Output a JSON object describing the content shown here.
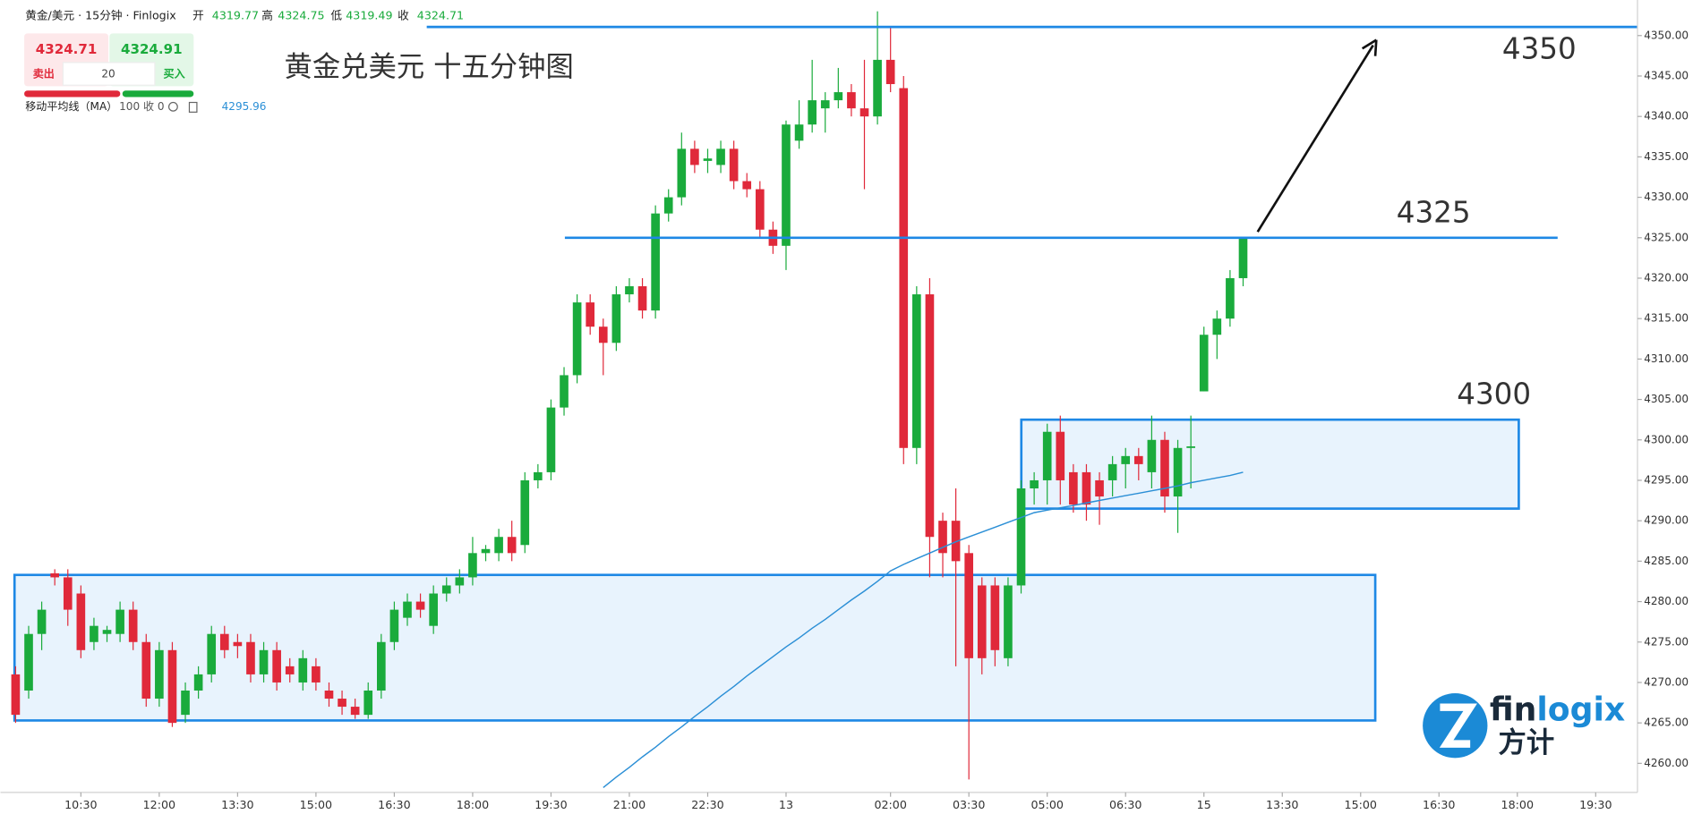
{
  "header": {
    "symbol": "黄金/美元 · 15分钟 · Finlogix",
    "open_label": "开",
    "open": "4319.77",
    "high_label": "高",
    "high": "4324.75",
    "low_label": "低",
    "low": "4319.49",
    "close_label": "收",
    "close": "4324.71",
    "sell_price": "4324.71",
    "buy_price": "4324.91",
    "sell": "卖出",
    "buy": "买入",
    "quantity": "20",
    "ma_label": "移动平均线（MA）",
    "ma_params": "100 收 0",
    "ma_value": "4295.96"
  },
  "logo": {
    "name_a": "fin",
    "name_b": "logix",
    "name_cn": "方计"
  },
  "chart_data": {
    "type": "candlestick",
    "title": "黄金兑美元 十五分钟图",
    "up_color": "#1aab3c",
    "down_color": "#e0293a",
    "ma_color": "#2b8fd6",
    "open": [
      4271,
      4269,
      4276,
      4283.5,
      4283,
      4281,
      4275,
      4276,
      4276,
      4279,
      4275,
      4268,
      4274,
      4266,
      4269,
      4271,
      4276,
      4275,
      4275,
      4271,
      4274,
      4272,
      4270,
      4272,
      4269,
      4268,
      4267,
      4266,
      4269,
      4275,
      4278,
      4280,
      4277,
      4281,
      4282,
      4283,
      4286,
      4286,
      4288,
      4287,
      4295,
      4296,
      4304,
      4308,
      4317,
      4314,
      4312,
      4318,
      4319,
      4316,
      4328,
      4330,
      4336,
      4334.5,
      4334,
      4336,
      4332,
      4331,
      4326,
      4324,
      4337,
      4339,
      4341,
      4342,
      4343,
      4341,
      4340,
      4347,
      4343.5,
      4299,
      4318,
      4290,
      4290,
      4286,
      4282,
      4282,
      4273,
      4282,
      4294,
      4295,
      4301,
      4296,
      4296,
      4295,
      4295,
      4297,
      4298,
      4296,
      4300,
      4293,
      4299,
      4306,
      4313,
      4315,
      4320
    ],
    "high": [
      4272,
      4277,
      4280,
      4284,
      4284,
      4282,
      4278,
      4277,
      4280,
      4280,
      4276,
      4275,
      4275,
      4270,
      4272,
      4277,
      4277,
      4276,
      4276,
      4275,
      4275,
      4273,
      4274,
      4273,
      4270,
      4269,
      4268,
      4270,
      4276,
      4280,
      4281,
      4281,
      4282,
      4283,
      4284,
      4288,
      4287,
      4289,
      4290,
      4296,
      4297,
      4305,
      4309,
      4318,
      4318,
      4315,
      4319,
      4320,
      4320,
      4329,
      4331,
      4338,
      4337,
      4336,
      4337,
      4337,
      4333,
      4332,
      4327,
      4339.5,
      4342,
      4347,
      4343,
      4346,
      4344,
      4347,
      4353,
      4351,
      4345,
      4319,
      4320,
      4291,
      4294,
      4287,
      4283,
      4283,
      4283,
      4295,
      4296,
      4302,
      4303,
      4297,
      4297,
      4296,
      4298,
      4299,
      4299,
      4303,
      4301,
      4300,
      4303,
      4314,
      4316,
      4321,
      4325
    ],
    "low": [
      4265,
      4268,
      4274,
      4282,
      4277,
      4273,
      4274,
      4275,
      4275,
      4274,
      4267,
      4267,
      4264.5,
      4265,
      4268,
      4270,
      4273,
      4273,
      4270,
      4270,
      4269,
      4270,
      4269,
      4269,
      4267,
      4266,
      4265.5,
      4265.5,
      4268,
      4274,
      4277,
      4278,
      4276,
      4280,
      4281,
      4282,
      4285,
      4285,
      4285,
      4286,
      4294,
      4295,
      4303,
      4307,
      4313,
      4308,
      4311,
      4317,
      4315,
      4315,
      4327,
      4329,
      4333,
      4333,
      4333,
      4331,
      4330,
      4325,
      4323,
      4321,
      4336,
      4338,
      4338,
      4341,
      4340,
      4331,
      4339,
      4343,
      4297,
      4297,
      4283,
      4283,
      4272,
      4258,
      4271,
      4272,
      4272,
      4281,
      4292,
      4292,
      4292,
      4291,
      4290,
      4289.5,
      4293,
      4294,
      4295,
      4294,
      4291,
      4288.5,
      4294,
      4306,
      4310,
      4314,
      4319
    ],
    "close": [
      4266,
      4276,
      4279,
      4283,
      4279,
      4274,
      4277,
      4276.5,
      4279,
      4275,
      4268,
      4274,
      4265,
      4269,
      4271,
      4276,
      4274,
      4274.5,
      4271,
      4274,
      4270,
      4271,
      4273,
      4270,
      4268,
      4267,
      4266,
      4269,
      4275,
      4279,
      4280,
      4279,
      4281,
      4282,
      4283,
      4286,
      4286.5,
      4288,
      4286,
      4295,
      4296,
      4304,
      4308,
      4317,
      4314,
      4312,
      4318,
      4319,
      4316,
      4328,
      4330,
      4336,
      4334,
      4334.8,
      4336,
      4332,
      4331,
      4326,
      4324,
      4339,
      4339,
      4342,
      4342,
      4343,
      4341,
      4340,
      4347,
      4344,
      4299,
      4318,
      4288,
      4286,
      4285,
      4273,
      4273,
      4274,
      4282,
      4294,
      4295,
      4301,
      4295,
      4292,
      4292,
      4293,
      4297,
      4298,
      4297,
      4300,
      4293,
      4299,
      4299.2,
      4313,
      4315,
      4320,
      4325
    ],
    "ma": [
      null,
      null,
      null,
      null,
      null,
      null,
      null,
      null,
      null,
      null,
      null,
      null,
      null,
      null,
      null,
      null,
      null,
      null,
      null,
      null,
      null,
      null,
      null,
      null,
      null,
      null,
      null,
      null,
      null,
      null,
      null,
      null,
      null,
      null,
      null,
      null,
      null,
      null,
      null,
      null,
      null,
      null,
      null,
      null,
      null,
      4257.0,
      4258.3,
      4259.5,
      4260.8,
      4262.0,
      4263.3,
      4264.5,
      4265.8,
      4267.0,
      4268.3,
      4269.5,
      4270.8,
      4272.0,
      4273.2,
      4274.4,
      4275.5,
      4276.7,
      4277.8,
      4279.0,
      4280.2,
      4281.3,
      4282.5,
      4283.8,
      4284.6,
      4285.3,
      4286.0,
      4286.7,
      4287.4,
      4288.0,
      4288.6,
      4289.2,
      4289.8,
      4290.4,
      4291.0,
      4291.3,
      4291.6,
      4291.9,
      4292.2,
      4292.5,
      4292.8,
      4293.1,
      4293.4,
      4293.7,
      4294.0,
      4294.3,
      4294.7,
      4295.0,
      4295.3,
      4295.6,
      4296.0
    ],
    "xlim": [
      -1.157,
      124.2
    ],
    "xticks": [
      {
        "value": 5,
        "label": "10:30"
      },
      {
        "value": 11,
        "label": "12:00"
      },
      {
        "value": 17,
        "label": "13:30"
      },
      {
        "value": 23,
        "label": "15:00"
      },
      {
        "value": 29,
        "label": "16:30"
      },
      {
        "value": 35,
        "label": "18:00"
      },
      {
        "value": 41,
        "label": "19:30"
      },
      {
        "value": 47,
        "label": "21:00"
      },
      {
        "value": 53,
        "label": "22:30"
      },
      {
        "value": 59,
        "label": "13"
      },
      {
        "value": 67,
        "label": "02:00"
      },
      {
        "value": 73,
        "label": "03:30"
      },
      {
        "value": 79,
        "label": "05:00"
      },
      {
        "value": 85,
        "label": "06:30"
      },
      {
        "value": 91,
        "label": "15"
      },
      {
        "value": 97,
        "label": "13:30"
      },
      {
        "value": 103,
        "label": "15:00"
      },
      {
        "value": 109,
        "label": "16:30"
      },
      {
        "value": 115,
        "label": "18:00"
      },
      {
        "value": 121,
        "label": "19:30"
      }
    ],
    "ylim": [
      4256.4,
      4354.4
    ],
    "yticks": [
      {
        "value": 4260,
        "label": "4260.00"
      },
      {
        "value": 4265,
        "label": "4265.00"
      },
      {
        "value": 4270,
        "label": "4270.00"
      },
      {
        "value": 4275,
        "label": "4275.00"
      },
      {
        "value": 4280,
        "label": "4280.00"
      },
      {
        "value": 4285,
        "label": "4285.00"
      },
      {
        "value": 4290,
        "label": "4290.00"
      },
      {
        "value": 4295,
        "label": "4295.00"
      },
      {
        "value": 4300,
        "label": "4300.00"
      },
      {
        "value": 4305,
        "label": "4305.00"
      },
      {
        "value": 4310,
        "label": "4310.00"
      },
      {
        "value": 4315,
        "label": "4315.00"
      },
      {
        "value": 4320,
        "label": "4320.00"
      },
      {
        "value": 4325,
        "label": "4325.00"
      },
      {
        "value": 4330,
        "label": "4330.00"
      },
      {
        "value": 4335,
        "label": "4335.00"
      },
      {
        "value": 4340,
        "label": "4340.00"
      },
      {
        "value": 4345,
        "label": "4345.00"
      },
      {
        "value": 4350,
        "label": "4350.00"
      }
    ],
    "levels": [
      {
        "value": 4350,
        "label": "4350"
      },
      {
        "value": 4325,
        "label": "4325"
      }
    ],
    "zones": [
      {
        "low": 4265.3,
        "high": 4283.3
      },
      {
        "low": 4291.5,
        "high": 4302.5,
        "label": "4300"
      }
    ]
  }
}
